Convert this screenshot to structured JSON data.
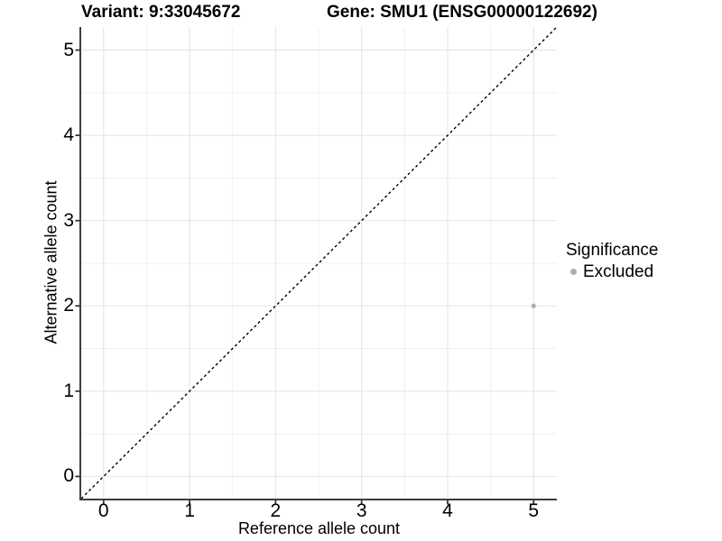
{
  "chart_data": {
    "type": "scatter",
    "titles": {
      "left": "Variant: 9:33045672",
      "right": "Gene: SMU1 (ENSG00000122692)"
    },
    "xlabel": "Reference allele count",
    "ylabel": "Alternative allele count",
    "xlim": [
      -0.26,
      5.27
    ],
    "ylim": [
      -0.26,
      5.27
    ],
    "xticks": [
      0,
      1,
      2,
      3,
      4,
      5
    ],
    "yticks": [
      0,
      1,
      2,
      3,
      4,
      5
    ],
    "minor_xticks": [
      0.5,
      1.5,
      2.5,
      3.5,
      4.5
    ],
    "minor_yticks": [
      0.5,
      1.5,
      2.5,
      3.5,
      4.5
    ],
    "grid": "on",
    "identity_line": {
      "style": "dashed",
      "slope": 1,
      "intercept": 0,
      "color": "#000000"
    },
    "series": [
      {
        "name": "Excluded",
        "color": "#adadad",
        "point_radius": 2.6,
        "points": [
          {
            "x": 5,
            "y": 2
          }
        ]
      }
    ],
    "legend": {
      "title": "Significance",
      "position": "right",
      "items": [
        {
          "label": "Excluded",
          "color": "#adadad"
        }
      ]
    },
    "colors": {
      "background": "#ffffff",
      "grid_major": "#e3e3e3",
      "grid_minor": "#f0f0f0",
      "axis_line": "#3d3d3d",
      "tick_mark": "#333333",
      "text": "#000000"
    }
  }
}
